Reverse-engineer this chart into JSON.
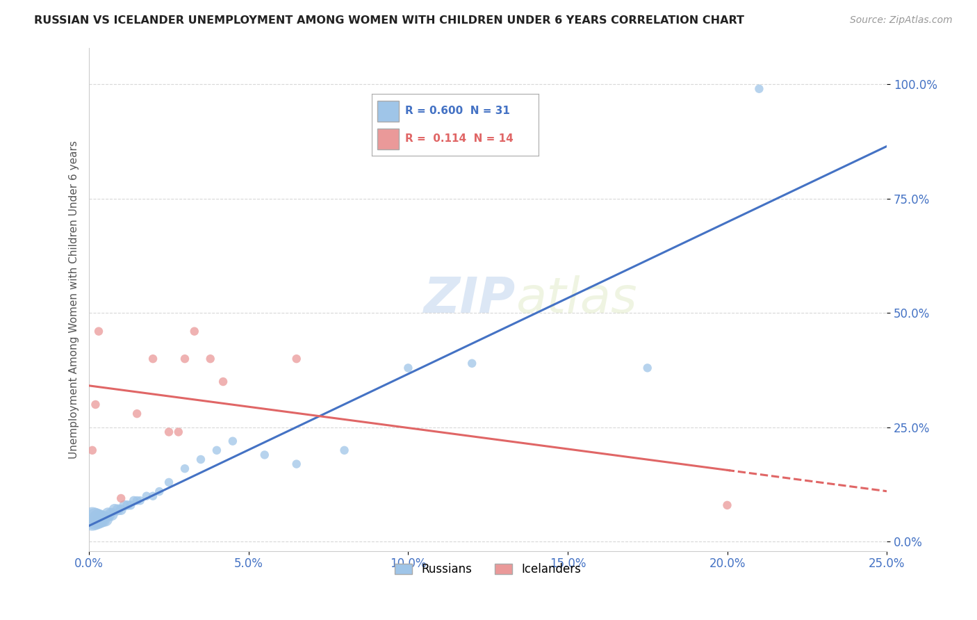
{
  "title": "RUSSIAN VS ICELANDER UNEMPLOYMENT AMONG WOMEN WITH CHILDREN UNDER 6 YEARS CORRELATION CHART",
  "source": "Source: ZipAtlas.com",
  "xlabel_ticks": [
    "0.0%",
    "5.0%",
    "10.0%",
    "15.0%",
    "20.0%",
    "25.0%"
  ],
  "ylabel_ticks": [
    "0.0%",
    "25.0%",
    "50.0%",
    "75.0%",
    "100.0%"
  ],
  "xlim": [
    0.0,
    0.25
  ],
  "ylim": [
    -0.02,
    1.08
  ],
  "ylabel": "Unemployment Among Women with Children Under 6 years",
  "watermark_zip": "ZIP",
  "watermark_atlas": "atlas",
  "legend_r1": "R = 0.600  N = 31",
  "legend_r2": "R =  0.114  N = 14",
  "russian_color": "#9fc5e8",
  "icelander_color": "#ea9999",
  "russian_line_color": "#4472c4",
  "icelander_line_color": "#e06666",
  "russian_label": "Russians",
  "icelander_label": "Icelanders",
  "russians_x": [
    0.001,
    0.002,
    0.003,
    0.004,
    0.005,
    0.006,
    0.007,
    0.008,
    0.009,
    0.01,
    0.011,
    0.012,
    0.013,
    0.014,
    0.015,
    0.016,
    0.018,
    0.02,
    0.022,
    0.025,
    0.03,
    0.035,
    0.04,
    0.045,
    0.055,
    0.065,
    0.08,
    0.1,
    0.12,
    0.175,
    0.21
  ],
  "russians_y": [
    0.05,
    0.05,
    0.05,
    0.05,
    0.05,
    0.06,
    0.06,
    0.07,
    0.07,
    0.07,
    0.08,
    0.08,
    0.08,
    0.09,
    0.09,
    0.09,
    0.1,
    0.1,
    0.11,
    0.13,
    0.16,
    0.18,
    0.2,
    0.22,
    0.19,
    0.17,
    0.2,
    0.38,
    0.39,
    0.38,
    0.99
  ],
  "russians_size": [
    600,
    500,
    400,
    300,
    250,
    200,
    180,
    150,
    130,
    120,
    110,
    100,
    90,
    90,
    85,
    80,
    80,
    80,
    80,
    80,
    80,
    80,
    80,
    80,
    80,
    80,
    80,
    80,
    80,
    80,
    80
  ],
  "icelanders_x": [
    0.001,
    0.002,
    0.003,
    0.01,
    0.015,
    0.02,
    0.025,
    0.028,
    0.03,
    0.033,
    0.038,
    0.042,
    0.065,
    0.2
  ],
  "icelanders_y": [
    0.2,
    0.3,
    0.46,
    0.095,
    0.28,
    0.4,
    0.24,
    0.24,
    0.4,
    0.46,
    0.4,
    0.35,
    0.4,
    0.08
  ],
  "icelanders_size": [
    80,
    80,
    80,
    80,
    80,
    80,
    80,
    80,
    80,
    80,
    80,
    80,
    80,
    80
  ],
  "background_color": "#ffffff",
  "grid_color": "#d8d8d8"
}
